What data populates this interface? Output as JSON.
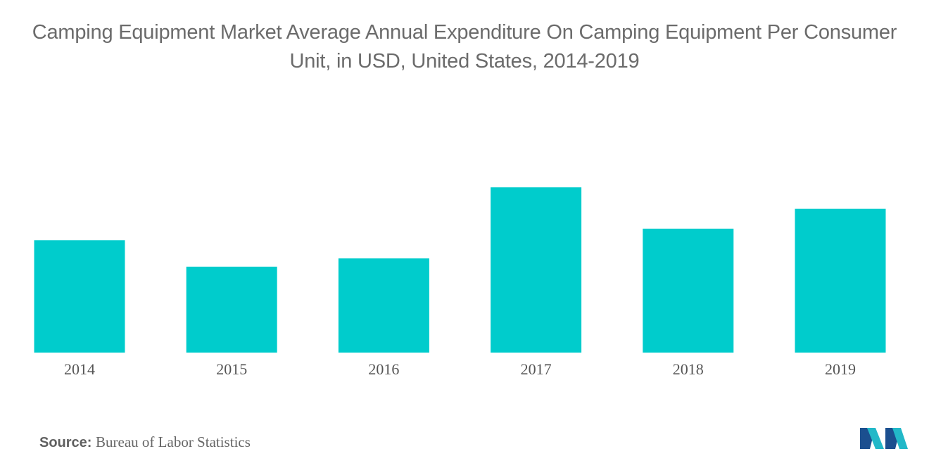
{
  "chart_data": {
    "type": "bar",
    "title": "Camping Equipment Market Average Annual Expenditure On Camping Equipment Per Consumer Unit, in USD, United States, 2014-2019",
    "categories": [
      "2014",
      "2015",
      "2016",
      "2017",
      "2018",
      "2019"
    ],
    "values": [
      68,
      52,
      57,
      100,
      75,
      87
    ],
    "ylim": [
      0,
      115
    ],
    "xlabel": "",
    "ylabel": "",
    "grid": false,
    "legend": "none",
    "bar_color": "#00CCCC"
  },
  "source": {
    "label": "Source:",
    "value": "Bureau of Labor Statistics"
  },
  "logo": {
    "icon": "mordor-intelligence-logo-icon",
    "colors": [
      "#1B4F8F",
      "#22B8C8"
    ]
  }
}
